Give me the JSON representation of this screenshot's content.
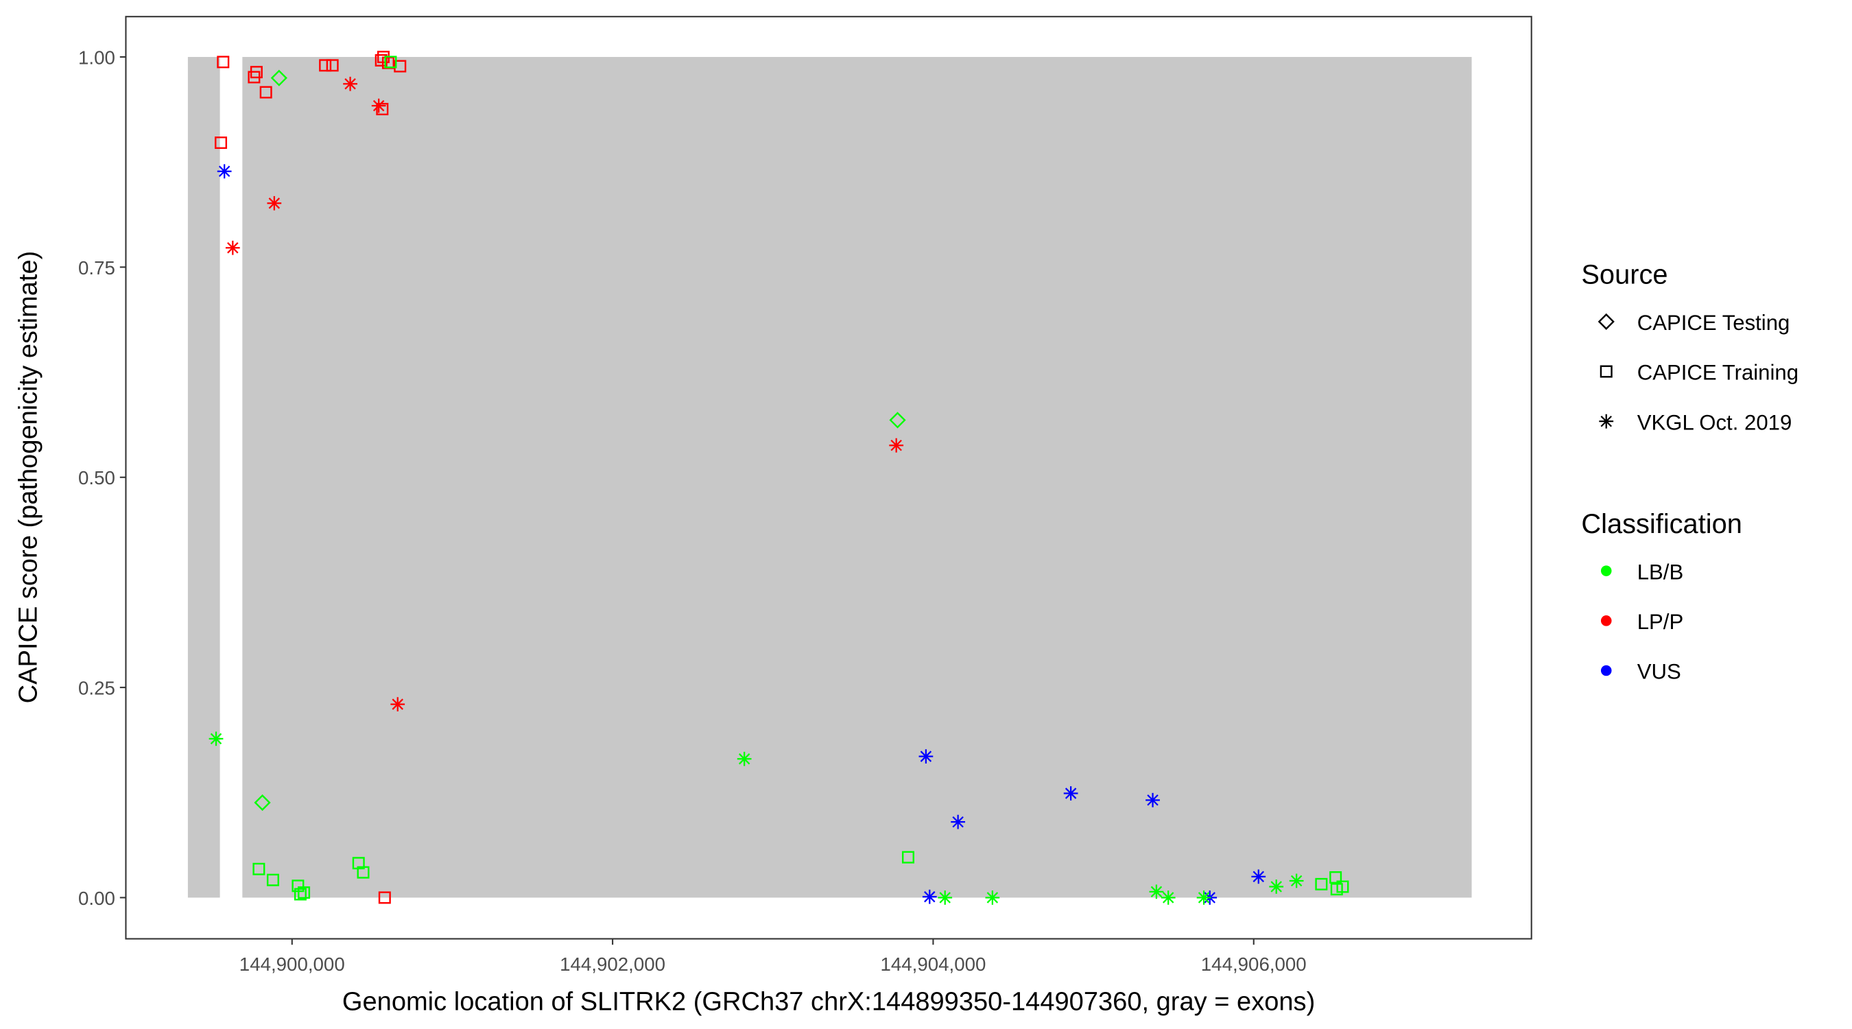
{
  "chart_data": {
    "type": "scatter",
    "xlabel": "Genomic location of SLITRK2 (GRCh37 chrX:144899350-144907360, gray = exons)",
    "ylabel": "CAPICE score (pathogenicity estimate)",
    "xlim": [
      144898963,
      144907733
    ],
    "ylim": [
      -0.049,
      1.048
    ],
    "grid": false,
    "x_ticks": [
      144900000,
      144902000,
      144904000,
      144906000
    ],
    "x_tick_labels": [
      "144,900,000",
      "144,902,000",
      "144,904,000",
      "144,906,000"
    ],
    "y_ticks": [
      0,
      0.25,
      0.5,
      0.75,
      1
    ],
    "y_tick_labels": [
      "0.00",
      "0.25",
      "0.50",
      "0.75",
      "1.00"
    ],
    "exons": [
      [
        144899350,
        144899550
      ],
      [
        144899690,
        144907360
      ]
    ],
    "exon_color": "#c8c8c8",
    "legend_placement": "right",
    "legends": {
      "source": {
        "title": "Source",
        "items": [
          {
            "label": "CAPICE Testing",
            "shape": "diamond"
          },
          {
            "label": "CAPICE Training",
            "shape": "square"
          },
          {
            "label": "VKGL Oct. 2019",
            "shape": "asterisk"
          }
        ]
      },
      "classification": {
        "title": "Classification",
        "items": [
          {
            "label": "LB/B",
            "color": "#00ff00"
          },
          {
            "label": "LP/P",
            "color": "#ff0000"
          },
          {
            "label": "VUS",
            "color": "#0000ff"
          }
        ]
      }
    },
    "points": [
      {
        "x": 144899570,
        "y": 0.994,
        "source": "CAPICE Training",
        "class": "LP/P"
      },
      {
        "x": 144899556,
        "y": 0.898,
        "source": "CAPICE Training",
        "class": "LP/P"
      },
      {
        "x": 144899763,
        "y": 0.976,
        "source": "CAPICE Training",
        "class": "LP/P"
      },
      {
        "x": 144899778,
        "y": 0.982,
        "source": "CAPICE Training",
        "class": "LP/P"
      },
      {
        "x": 144899837,
        "y": 0.958,
        "source": "CAPICE Training",
        "class": "LP/P"
      },
      {
        "x": 144900207,
        "y": 0.99,
        "source": "CAPICE Training",
        "class": "LP/P"
      },
      {
        "x": 144900252,
        "y": 0.99,
        "source": "CAPICE Training",
        "class": "LP/P"
      },
      {
        "x": 144900556,
        "y": 0.996,
        "source": "CAPICE Training",
        "class": "LP/P"
      },
      {
        "x": 144900570,
        "y": 1.0,
        "source": "CAPICE Training",
        "class": "LP/P"
      },
      {
        "x": 144900600,
        "y": 0.993,
        "source": "CAPICE Training",
        "class": "LP/P"
      },
      {
        "x": 144900674,
        "y": 0.989,
        "source": "CAPICE Training",
        "class": "LP/P"
      },
      {
        "x": 144900563,
        "y": 0.938,
        "source": "CAPICE Training",
        "class": "LP/P"
      },
      {
        "x": 144900578,
        "y": 0.0,
        "source": "CAPICE Training",
        "class": "LP/P"
      },
      {
        "x": 144900615,
        "y": 0.994,
        "source": "CAPICE Training",
        "class": "LB/B"
      },
      {
        "x": 144899793,
        "y": 0.034,
        "source": "CAPICE Training",
        "class": "LB/B"
      },
      {
        "x": 144899881,
        "y": 0.021,
        "source": "CAPICE Training",
        "class": "LB/B"
      },
      {
        "x": 144900037,
        "y": 0.014,
        "source": "CAPICE Training",
        "class": "LB/B"
      },
      {
        "x": 144900052,
        "y": 0.004,
        "source": "CAPICE Training",
        "class": "LB/B"
      },
      {
        "x": 144900074,
        "y": 0.006,
        "source": "CAPICE Training",
        "class": "LB/B"
      },
      {
        "x": 144900415,
        "y": 0.041,
        "source": "CAPICE Training",
        "class": "LB/B"
      },
      {
        "x": 144900444,
        "y": 0.03,
        "source": "CAPICE Training",
        "class": "LB/B"
      },
      {
        "x": 144903844,
        "y": 0.048,
        "source": "CAPICE Training",
        "class": "LB/B"
      },
      {
        "x": 144906422,
        "y": 0.016,
        "source": "CAPICE Training",
        "class": "LB/B"
      },
      {
        "x": 144906511,
        "y": 0.024,
        "source": "CAPICE Training",
        "class": "LB/B"
      },
      {
        "x": 144906518,
        "y": 0.01,
        "source": "CAPICE Training",
        "class": "LB/B"
      },
      {
        "x": 144906555,
        "y": 0.013,
        "source": "CAPICE Training",
        "class": "LB/B"
      },
      {
        "x": 144899919,
        "y": 0.975,
        "source": "CAPICE Testing",
        "class": "LB/B"
      },
      {
        "x": 144899815,
        "y": 0.113,
        "source": "CAPICE Testing",
        "class": "LB/B"
      },
      {
        "x": 144903778,
        "y": 0.568,
        "source": "CAPICE Testing",
        "class": "LB/B"
      },
      {
        "x": 144900363,
        "y": 0.968,
        "source": "VKGL Oct. 2019",
        "class": "LP/P"
      },
      {
        "x": 144900541,
        "y": 0.942,
        "source": "VKGL Oct. 2019",
        "class": "LP/P"
      },
      {
        "x": 144899889,
        "y": 0.826,
        "source": "VKGL Oct. 2019",
        "class": "LP/P"
      },
      {
        "x": 144899630,
        "y": 0.773,
        "source": "VKGL Oct. 2019",
        "class": "LP/P"
      },
      {
        "x": 144903770,
        "y": 0.538,
        "source": "VKGL Oct. 2019",
        "class": "LP/P"
      },
      {
        "x": 144900659,
        "y": 0.23,
        "source": "VKGL Oct. 2019",
        "class": "LP/P"
      },
      {
        "x": 144899578,
        "y": 0.864,
        "source": "VKGL Oct. 2019",
        "class": "VUS"
      },
      {
        "x": 144903955,
        "y": 0.168,
        "source": "VKGL Oct. 2019",
        "class": "VUS"
      },
      {
        "x": 144904155,
        "y": 0.09,
        "source": "VKGL Oct. 2019",
        "class": "VUS"
      },
      {
        "x": 144904859,
        "y": 0.124,
        "source": "VKGL Oct. 2019",
        "class": "VUS"
      },
      {
        "x": 144905370,
        "y": 0.116,
        "source": "VKGL Oct. 2019",
        "class": "VUS"
      },
      {
        "x": 144903978,
        "y": 0.001,
        "source": "VKGL Oct. 2019",
        "class": "VUS"
      },
      {
        "x": 144905726,
        "y": 0.0,
        "source": "VKGL Oct. 2019",
        "class": "VUS"
      },
      {
        "x": 144906030,
        "y": 0.025,
        "source": "VKGL Oct. 2019",
        "class": "VUS"
      },
      {
        "x": 144899526,
        "y": 0.189,
        "source": "VKGL Oct. 2019",
        "class": "LB/B"
      },
      {
        "x": 144902822,
        "y": 0.165,
        "source": "VKGL Oct. 2019",
        "class": "LB/B"
      },
      {
        "x": 144904074,
        "y": 0.0,
        "source": "VKGL Oct. 2019",
        "class": "LB/B"
      },
      {
        "x": 144904370,
        "y": 0.0,
        "source": "VKGL Oct. 2019",
        "class": "LB/B"
      },
      {
        "x": 144905393,
        "y": 0.007,
        "source": "VKGL Oct. 2019",
        "class": "LB/B"
      },
      {
        "x": 144905467,
        "y": 0.0,
        "source": "VKGL Oct. 2019",
        "class": "LB/B"
      },
      {
        "x": 144905689,
        "y": 0.0,
        "source": "VKGL Oct. 2019",
        "class": "LB/B"
      },
      {
        "x": 144906141,
        "y": 0.013,
        "source": "VKGL Oct. 2019",
        "class": "LB/B"
      },
      {
        "x": 144906267,
        "y": 0.02,
        "source": "VKGL Oct. 2019",
        "class": "LB/B"
      }
    ]
  }
}
